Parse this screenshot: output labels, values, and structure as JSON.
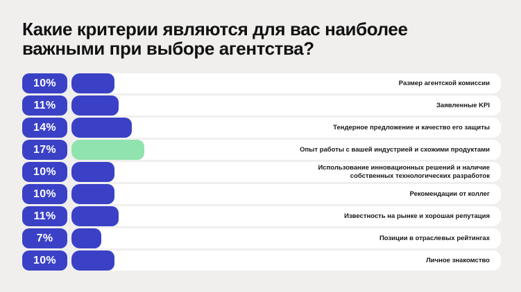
{
  "title": "Какие критерии являются для вас наиболее важными при выборе агентства?",
  "colors": {
    "background": "#f0efee",
    "title_text": "#111111",
    "label_text": "#161616",
    "badge_bg": "#3a41c6",
    "badge_text": "#ffffff",
    "bar_default": "#3a41c6",
    "bar_highlight": "#90e2ae",
    "track": "#ffffff"
  },
  "chart_data": {
    "type": "bar",
    "orientation": "horizontal",
    "title": "Какие критерии являются для вас наиболее важными при выборе агентства?",
    "unit": "%",
    "xlim": [
      0,
      100
    ],
    "grid": false,
    "legend": false,
    "categories": [
      "Размер агентской комиссии",
      "Заявленные KPI",
      "Тендерное предложение и качество его защиты",
      "Опыт работы с вашей индустрией и схожими продуктами",
      "Использование инновационных решений и наличие собственных технологических разработок",
      "Рекомендации от коллег",
      "Известность на рынке и хорошая репутация",
      "Позиции в отраслевых рейтингах",
      "Личное знакомство"
    ],
    "values": [
      10,
      11,
      14,
      17,
      10,
      10,
      11,
      7,
      10
    ],
    "value_labels": [
      "10%",
      "11%",
      "14%",
      "17%",
      "10%",
      "10%",
      "11%",
      "7%",
      "10%"
    ],
    "highlight_index": 3,
    "highlighted_category": "Опыт работы с вашей индустрией и схожими продуктами"
  }
}
